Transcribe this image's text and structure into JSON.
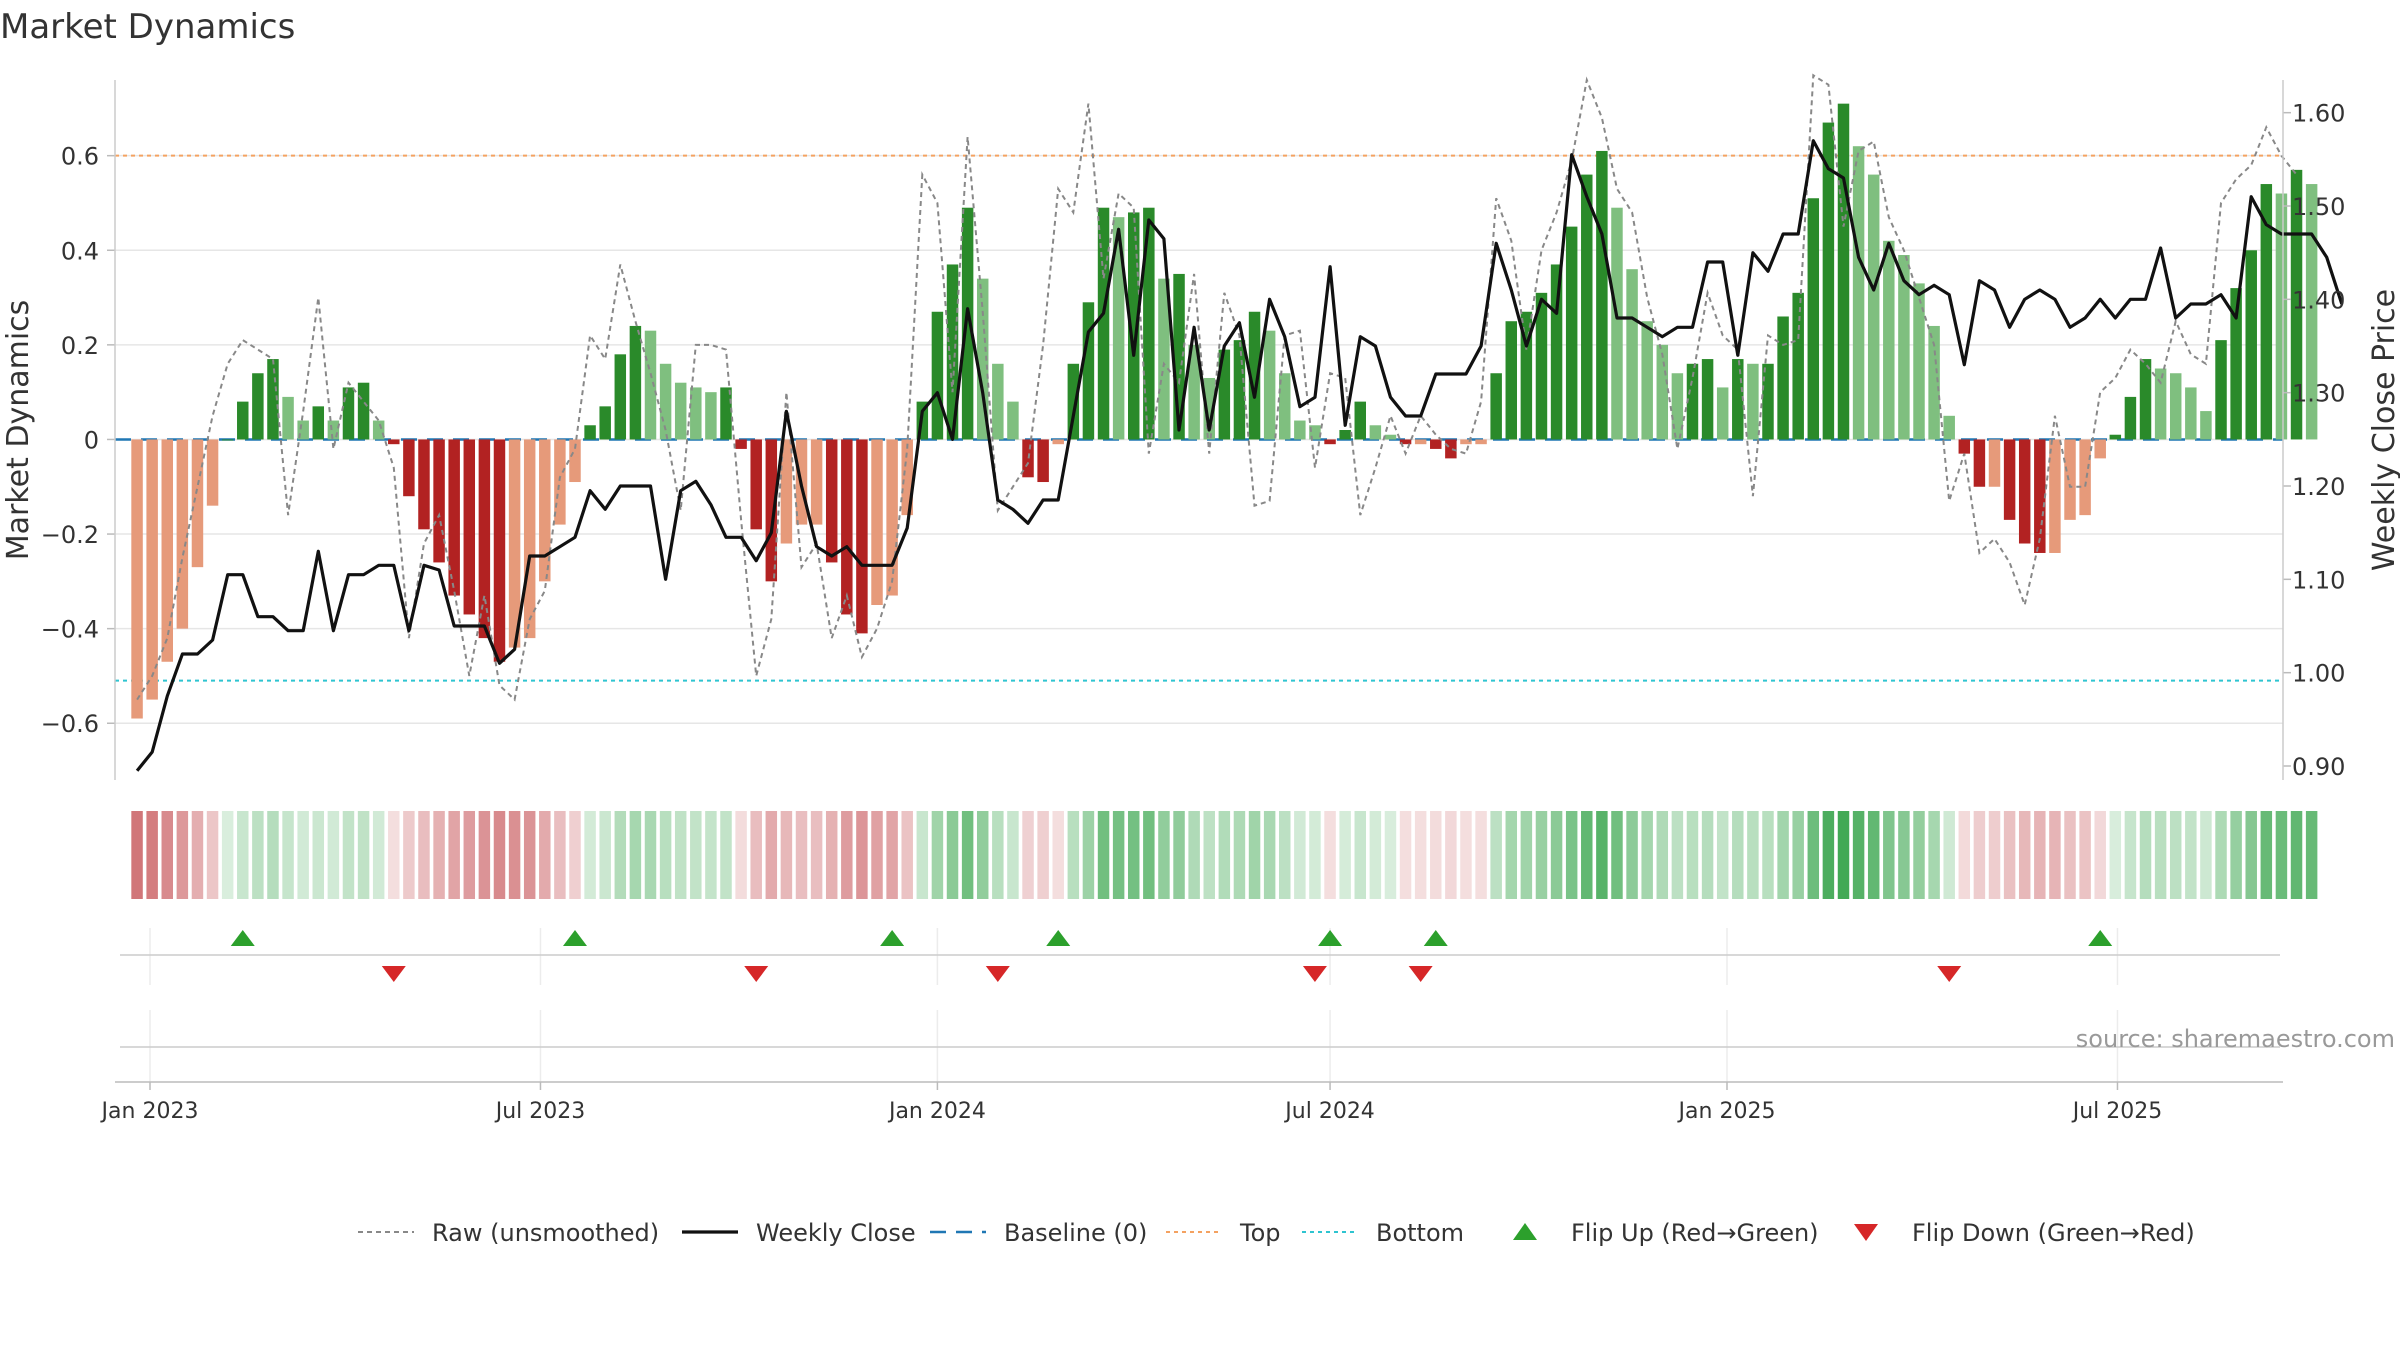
{
  "chart_data": {
    "type": "bar",
    "title": "Market Dynamics",
    "ylabel_left": "Market Dynamics",
    "ylabel_right": "Weekly Close Price",
    "y_left_range": [
      -0.72,
      0.76
    ],
    "y_left_ticks": [
      {
        "v": 0.6,
        "label": "0.6"
      },
      {
        "v": 0.4,
        "label": "0.4"
      },
      {
        "v": 0.2,
        "label": "0.2"
      },
      {
        "v": 0,
        "label": "0"
      },
      {
        "v": -0.2,
        "label": "−0.2"
      },
      {
        "v": -0.4,
        "label": "−0.4"
      },
      {
        "v": -0.6,
        "label": "−0.6"
      }
    ],
    "y_right_range": [
      0.885,
      1.635
    ],
    "y_right_ticks": [
      "0.90",
      "1.00",
      "1.10",
      "1.20",
      "1.30",
      "1.40",
      "1.50",
      "1.60"
    ],
    "x_start": "2022-12-26",
    "x_step_days": 7,
    "x_ticks": [
      {
        "date": "2023-01-01",
        "label": "Jan 2023"
      },
      {
        "date": "2023-07-01",
        "label": "Jul 2023"
      },
      {
        "date": "2024-01-01",
        "label": "Jan 2024"
      },
      {
        "date": "2024-07-01",
        "label": "Jul 2024"
      },
      {
        "date": "2025-01-01",
        "label": "Jan 2025"
      },
      {
        "date": "2025-07-01",
        "label": "Jul 2025"
      }
    ],
    "top_threshold": 0.6,
    "bottom_threshold": -0.51,
    "series": [
      {
        "name": "Raw (unsmoothed)",
        "values": [
          -0.55,
          -0.5,
          -0.42,
          -0.25,
          -0.1,
          0.05,
          0.16,
          0.21,
          0.19,
          0.17,
          -0.16,
          0.06,
          0.3,
          -0.02,
          0.12,
          0.08,
          0.04,
          -0.06,
          -0.42,
          -0.22,
          -0.16,
          -0.32,
          -0.5,
          -0.33,
          -0.52,
          -0.55,
          -0.38,
          -0.32,
          -0.08,
          -0.02,
          0.22,
          0.17,
          0.37,
          0.25,
          0.14,
          0.02,
          -0.15,
          0.2,
          0.2,
          0.19,
          -0.17,
          -0.5,
          -0.38,
          0.1,
          -0.27,
          -0.22,
          -0.42,
          -0.33,
          -0.46,
          -0.4,
          -0.3,
          -0.02,
          0.56,
          0.5,
          0.1,
          0.64,
          0.27,
          -0.15,
          -0.1,
          -0.05,
          0.2,
          0.53,
          0.48,
          0.71,
          0.34,
          0.52,
          0.49,
          -0.03,
          0.16,
          0.12,
          0.35,
          -0.03,
          0.31,
          0.22,
          -0.14,
          -0.13,
          0.22,
          0.23,
          -0.06,
          0.14,
          0.13,
          -0.16,
          -0.06,
          0.05,
          -0.03,
          0.05,
          0.01,
          -0.02,
          -0.03,
          0.08,
          0.51,
          0.42,
          0.19,
          0.4,
          0.48,
          0.59,
          0.76,
          0.68,
          0.53,
          0.48,
          0.3,
          0.18,
          -0.02,
          0.13,
          0.31,
          0.22,
          0.19,
          -0.12,
          0.22,
          0.2,
          0.21,
          0.77,
          0.75,
          0.45,
          0.61,
          0.63,
          0.47,
          0.4,
          0.3,
          0.2,
          -0.13,
          -0.03,
          -0.24,
          -0.21,
          -0.26,
          -0.35,
          -0.21,
          0.05,
          -0.1,
          -0.1,
          0.1,
          0.13,
          0.19,
          0.16,
          0.12,
          0.25,
          0.18,
          0.16,
          0.5,
          0.55,
          0.58,
          0.66,
          0.6,
          0.56
        ]
      },
      {
        "name": "Weekly Close",
        "values": [
          0.895,
          0.915,
          0.975,
          1.02,
          1.02,
          1.035,
          1.105,
          1.105,
          1.06,
          1.06,
          1.045,
          1.045,
          1.13,
          1.045,
          1.105,
          1.105,
          1.115,
          1.115,
          1.045,
          1.115,
          1.11,
          1.05,
          1.05,
          1.05,
          1.01,
          1.025,
          1.125,
          1.125,
          1.135,
          1.145,
          1.195,
          1.175,
          1.2,
          1.2,
          1.2,
          1.1,
          1.195,
          1.205,
          1.18,
          1.145,
          1.145,
          1.12,
          1.15,
          1.28,
          1.2,
          1.135,
          1.125,
          1.135,
          1.115,
          1.115,
          1.115,
          1.155,
          1.28,
          1.3,
          1.25,
          1.39,
          1.3,
          1.185,
          1.175,
          1.16,
          1.185,
          1.185,
          1.275,
          1.365,
          1.385,
          1.475,
          1.34,
          1.485,
          1.465,
          1.26,
          1.37,
          1.26,
          1.35,
          1.375,
          1.295,
          1.4,
          1.36,
          1.285,
          1.295,
          1.435,
          1.265,
          1.36,
          1.35,
          1.295,
          1.275,
          1.275,
          1.32,
          1.32,
          1.32,
          1.35,
          1.46,
          1.41,
          1.35,
          1.4,
          1.385,
          1.555,
          1.51,
          1.47,
          1.38,
          1.38,
          1.37,
          1.36,
          1.37,
          1.37,
          1.44,
          1.44,
          1.34,
          1.45,
          1.43,
          1.47,
          1.47,
          1.57,
          1.54,
          1.53,
          1.445,
          1.41,
          1.46,
          1.42,
          1.405,
          1.415,
          1.405,
          1.33,
          1.42,
          1.41,
          1.37,
          1.4,
          1.41,
          1.4,
          1.37,
          1.38,
          1.4,
          1.38,
          1.4,
          1.4,
          1.455,
          1.38,
          1.395,
          1.395,
          1.405,
          1.38,
          1.51,
          1.48,
          1.47,
          1.47,
          1.47,
          1.445,
          1.395
        ]
      },
      {
        "name": "Market Dynamics (smoothed)",
        "values": [
          -0.59,
          -0.55,
          -0.47,
          -0.4,
          -0.27,
          -0.14,
          0,
          0.08,
          0.14,
          0.17,
          0.09,
          0.04,
          0.07,
          0.04,
          0.11,
          0.12,
          0.04,
          -0.01,
          -0.12,
          -0.19,
          -0.26,
          -0.33,
          -0.37,
          -0.42,
          -0.47,
          -0.44,
          -0.42,
          -0.3,
          -0.18,
          -0.09,
          0.03,
          0.07,
          0.18,
          0.24,
          0.23,
          0.16,
          0.12,
          0.11,
          0.1,
          0.11,
          -0.02,
          -0.19,
          -0.3,
          -0.22,
          -0.18,
          -0.18,
          -0.26,
          -0.37,
          -0.41,
          -0.35,
          -0.33,
          -0.16,
          0.08,
          0.27,
          0.37,
          0.49,
          0.34,
          0.16,
          0.08,
          -0.08,
          -0.09,
          -0.01,
          0.16,
          0.29,
          0.49,
          0.47,
          0.48,
          0.49,
          0.34,
          0.35,
          0.2,
          0.13,
          0.19,
          0.21,
          0.27,
          0.23,
          0.14,
          0.04,
          0.03,
          -0.01,
          0.02,
          0.08,
          0.03,
          0.01,
          -0.01,
          -0.01,
          -0.02,
          -0.04,
          -0.01,
          -0.01,
          0.14,
          0.25,
          0.27,
          0.31,
          0.37,
          0.45,
          0.56,
          0.61,
          0.49,
          0.36,
          0.25,
          0.2,
          0.14,
          0.16,
          0.17,
          0.11,
          0.17,
          0.16,
          0.16,
          0.26,
          0.31,
          0.51,
          0.67,
          0.71,
          0.62,
          0.56,
          0.42,
          0.39,
          0.33,
          0.24,
          0.05,
          -0.03,
          -0.1,
          -0.1,
          -0.17,
          -0.22,
          -0.24,
          -0.24,
          -0.17,
          -0.16,
          -0.04,
          0.01,
          0.09,
          0.17,
          0.15,
          0.14,
          0.11,
          0.06,
          0.21,
          0.32,
          0.4,
          0.54,
          0.52,
          0.57,
          0.54
        ]
      }
    ],
    "flip_up_dates": [
      "2023-02-13",
      "2023-07-17",
      "2023-12-11",
      "2024-02-26",
      "2024-07-01",
      "2024-08-19",
      "2025-06-23"
    ],
    "flip_down_dates": [
      "2023-04-24",
      "2023-10-09",
      "2024-01-29",
      "2024-06-24",
      "2024-08-12",
      "2025-04-14"
    ],
    "colors": {
      "strong_green": "#2a8a2a",
      "light_green": "#7fbf7f",
      "strong_red": "#b22222",
      "light_red": "#e69a7a",
      "price_line": "#111111",
      "raw_line": "#888888",
      "baseline": "#1f77b4",
      "top": "#f4a261",
      "bottom": "#2ec4d0",
      "flip_up": "#2ca02c",
      "flip_down": "#d62728"
    },
    "legend": {
      "placement": "bottom-center",
      "items": [
        {
          "label": "Raw (unsmoothed)",
          "symbol": "dashed-gray"
        },
        {
          "label": "Weekly Close",
          "symbol": "solid-black"
        },
        {
          "label": "Baseline (0)",
          "symbol": "dashed-blue"
        },
        {
          "label": "Top",
          "symbol": "dotted-orange"
        },
        {
          "label": "Bottom",
          "symbol": "dotted-cyan"
        },
        {
          "label": "Flip Up (Red→Green)",
          "symbol": "triangle-up-green"
        },
        {
          "label": "Flip Down (Green→Red)",
          "symbol": "triangle-down-red"
        }
      ]
    },
    "source": "source: sharemaestro.com"
  }
}
